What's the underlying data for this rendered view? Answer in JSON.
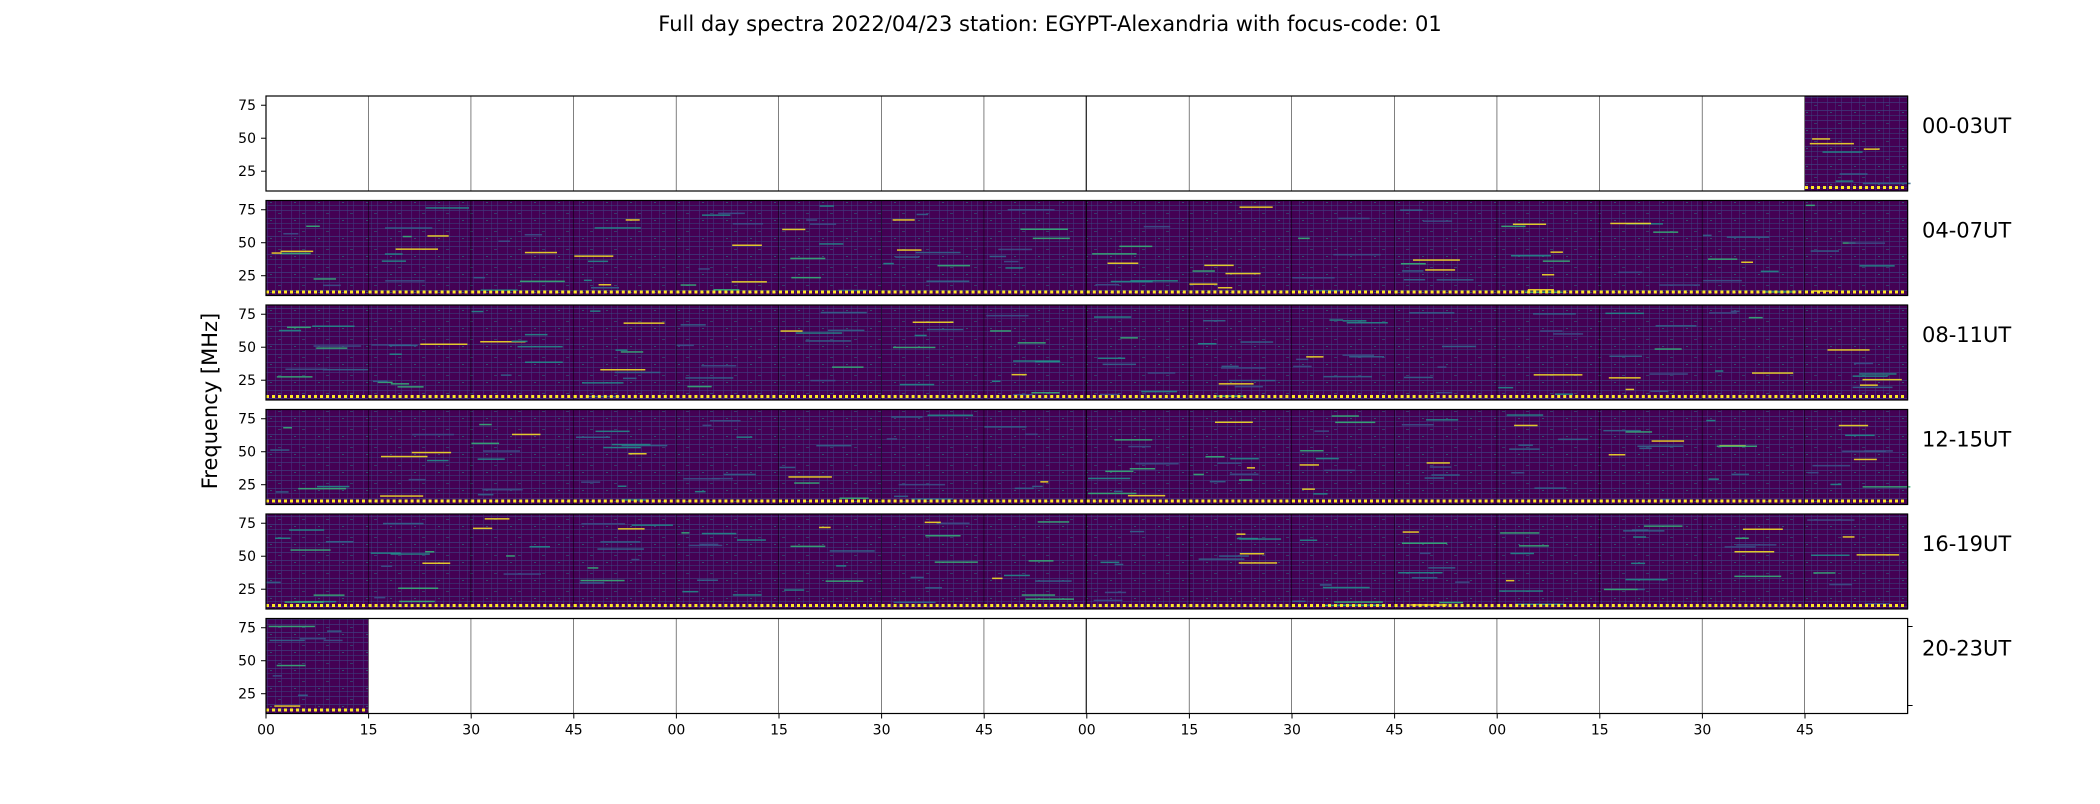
{
  "chart_data": {
    "type": "heatmap",
    "title": "Full day spectra 2022/04/23 station: EGYPT-Alexandria with focus-code: 01",
    "ylabel": "Frequency [MHz]",
    "y_ticks": [
      "25",
      "50",
      "75"
    ],
    "ylim": [
      10,
      82
    ],
    "x_ticks": [
      "00",
      "15",
      "30",
      "45",
      "00",
      "15",
      "30",
      "45",
      "00",
      "15",
      "30",
      "45",
      "00",
      "15",
      "30",
      "45"
    ],
    "colormap": "viridis",
    "colors": {
      "background": "#440154",
      "mid": "#31688e",
      "high": "#35b779",
      "peak": "#fde725"
    },
    "rows": [
      {
        "label": "00-03UT",
        "panels_with_data": [
          15
        ]
      },
      {
        "label": "04-07UT",
        "panels_with_data": [
          0,
          1,
          2,
          3,
          4,
          5,
          6,
          7,
          8,
          9,
          10,
          11,
          12,
          13,
          14,
          15
        ]
      },
      {
        "label": "08-11UT",
        "panels_with_data": [
          0,
          1,
          2,
          3,
          4,
          5,
          6,
          7,
          8,
          9,
          10,
          11,
          12,
          13,
          14,
          15
        ]
      },
      {
        "label": "12-15UT",
        "panels_with_data": [
          0,
          1,
          2,
          3,
          4,
          5,
          6,
          7,
          8,
          9,
          10,
          11,
          12,
          13,
          14,
          15
        ]
      },
      {
        "label": "16-19UT",
        "panels_with_data": [
          0,
          1,
          2,
          3,
          4,
          5,
          6,
          7,
          8,
          9,
          10,
          11,
          12,
          13,
          14,
          15
        ]
      },
      {
        "label": "20-23UT",
        "panels_with_data": [
          0
        ]
      }
    ]
  }
}
